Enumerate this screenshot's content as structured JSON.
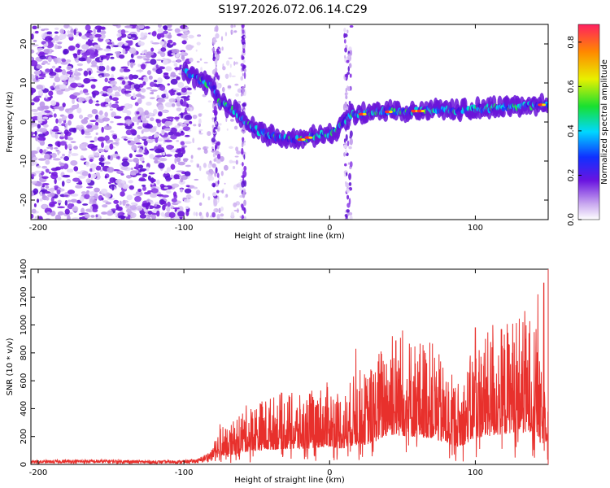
{
  "title": "S197.2026.072.06.14.C29",
  "colors": {
    "snr_line": "#e8302c",
    "background": "#ffffff",
    "axis": "#000000",
    "frame_right_accent": "#e05050",
    "spectrogram_low": "#c9a8ef",
    "spectrogram_mid": "#7a1fe0",
    "spectrogram_high": "#ff2a2a"
  },
  "chart_data": [
    {
      "type": "heatmap",
      "id": "spectrogram",
      "title": "S197.2026.072.06.14.C29",
      "xlabel": "Height of straight line (km)",
      "ylabel": "Frequency (Hz)",
      "xlim": [
        -205,
        150
      ],
      "ylim": [
        -25,
        25
      ],
      "xticks": [
        -200,
        -100,
        0,
        100
      ],
      "xtick_labels": [
        "-200",
        "-100",
        "0",
        "100"
      ],
      "yticks": [
        20,
        10,
        0,
        -10,
        -20
      ],
      "ytick_labels": [
        "20",
        "10",
        "0",
        "-10",
        "-20"
      ],
      "ridge": {
        "description": "dominant frequency track",
        "x": [
          -100,
          -90,
          -80,
          -75,
          -65,
          -55,
          -45,
          -35,
          -25,
          -15,
          -5,
          2,
          15,
          30,
          50,
          70,
          90,
          110,
          130,
          150
        ],
        "y": [
          13,
          11,
          9,
          5,
          3,
          -1,
          -3,
          -4,
          -4.5,
          -4,
          -3,
          -3,
          2,
          2.5,
          2.8,
          3,
          3.2,
          3.6,
          4,
          4.5
        ]
      },
      "colorbar": {
        "label": "Normalized spectral amplitude",
        "range": [
          0.0,
          0.88
        ],
        "ticks": [
          0.0,
          0.2,
          0.4,
          0.6,
          0.8
        ],
        "tick_labels": [
          "0.0",
          "0.2",
          "0.4",
          "0.6",
          "0.8"
        ],
        "colormap": "rainbow"
      }
    },
    {
      "type": "line",
      "id": "snr",
      "xlabel": "Height of straight line (km)",
      "ylabel": "SNR (10 * v/v)",
      "xlim": [
        -205,
        150
      ],
      "ylim": [
        0,
        1400
      ],
      "xticks": [
        -200,
        -100,
        0,
        100
      ],
      "xtick_labels": [
        "-200",
        "-100",
        "0",
        "100"
      ],
      "yticks": [
        0,
        200,
        400,
        600,
        800,
        1000,
        1200,
        1400
      ],
      "ytick_labels": [
        "0",
        "200",
        "400",
        "600",
        "800",
        "1000",
        "1200",
        "1400"
      ],
      "series": [
        {
          "name": "SNR",
          "x": [
            -205,
            -180,
            -150,
            -120,
            -100,
            -90,
            -80,
            -75,
            -70,
            -60,
            -50,
            -40,
            -30,
            -20,
            -10,
            0,
            10,
            15,
            20,
            25,
            30,
            35,
            40,
            45,
            50,
            60,
            70,
            80,
            90,
            100,
            110,
            120,
            130,
            135,
            140,
            145,
            150
          ],
          "values": [
            20,
            25,
            25,
            20,
            22,
            30,
            80,
            200,
            150,
            250,
            280,
            300,
            320,
            300,
            340,
            360,
            320,
            380,
            420,
            400,
            450,
            520,
            600,
            600,
            580,
            560,
            540,
            420,
            360,
            540,
            580,
            620,
            680,
            620,
            700,
            400,
            500
          ],
          "peaks": [
            {
              "x": 147,
              "y": 1300
            },
            {
              "x": 143,
              "y": 1220
            },
            {
              "x": 134,
              "y": 1100
            },
            {
              "x": 112,
              "y": 1000
            },
            {
              "x": 50,
              "y": 960
            },
            {
              "x": 43,
              "y": 920
            },
            {
              "x": 18,
              "y": 830
            },
            {
              "x": 100,
              "y": 980
            }
          ]
        }
      ]
    }
  ]
}
